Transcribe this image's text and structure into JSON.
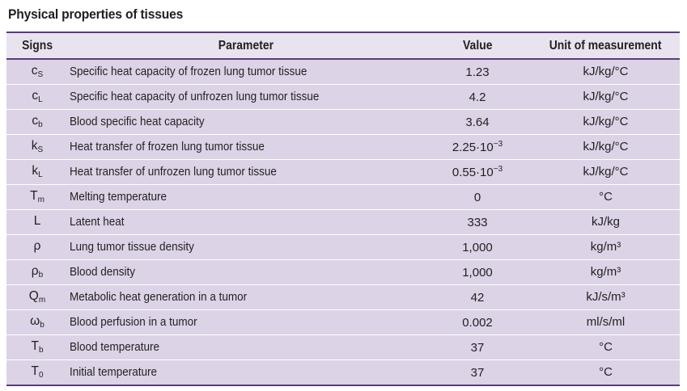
{
  "caption": "Physical properties of tissues",
  "headers": {
    "signs": "Signs",
    "parameter": "Parameter",
    "value": "Value",
    "unit": "Unit of measurement"
  },
  "rows": [
    {
      "sign": "c",
      "sub": "S",
      "parameter": "Specific heat capacity of frozen lung tumor tissue",
      "value": "1.23",
      "exp": "",
      "unit": "kJ/kg/°C"
    },
    {
      "sign": "c",
      "sub": "L",
      "parameter": "Specific heat capacity of unfrozen lung tumor tissue",
      "value": "4.2",
      "exp": "",
      "unit": "kJ/kg/°C"
    },
    {
      "sign": "c",
      "sub": "b",
      "parameter": "Blood specific heat capacity",
      "value": "3.64",
      "exp": "",
      "unit": "kJ/kg/°C"
    },
    {
      "sign": "k",
      "sub": "S",
      "parameter": "Heat transfer of frozen lung tumor tissue",
      "value": "2.25·10",
      "exp": "−3",
      "unit": "kJ/kg/°C"
    },
    {
      "sign": "k",
      "sub": "L",
      "parameter": "Heat transfer of unfrozen lung tumor tissue",
      "value": "0.55·10",
      "exp": "−3",
      "unit": "kJ/kg/°C"
    },
    {
      "sign": "T",
      "sub": "m",
      "parameter": "Melting temperature",
      "value": "0",
      "exp": "",
      "unit": "°C"
    },
    {
      "sign": "L",
      "sub": "",
      "parameter": "Latent heat",
      "value": "333",
      "exp": "",
      "unit": "kJ/kg"
    },
    {
      "sign": "ρ",
      "sub": "",
      "parameter": "Lung tumor tissue density",
      "value": "1,000",
      "exp": "",
      "unit": "kg/m³"
    },
    {
      "sign": "ρ",
      "sub": "b",
      "parameter": "Blood density",
      "value": "1,000",
      "exp": "",
      "unit": "kg/m³"
    },
    {
      "sign": "Q",
      "sub": "m",
      "parameter": "Metabolic heat generation in a tumor",
      "value": "42",
      "exp": "",
      "unit": "kJ/s/m³"
    },
    {
      "sign": "ω",
      "sub": "b",
      "parameter": "Blood perfusion in a tumor",
      "value": "0.002",
      "exp": "",
      "unit": "ml/s/ml"
    },
    {
      "sign": "T",
      "sub": "b",
      "parameter": "Blood temperature",
      "value": "37",
      "exp": "",
      "unit": "°C"
    },
    {
      "sign": "T",
      "sub": "0",
      "parameter": "Initial temperature",
      "value": "37",
      "exp": "",
      "unit": "°C"
    }
  ]
}
